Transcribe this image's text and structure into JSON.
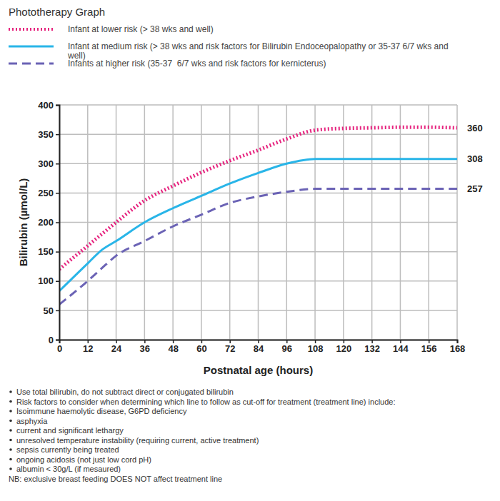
{
  "chart_data": {
    "type": "line",
    "title": "Phototherapy Graph",
    "x_label": "Postnatal age (hours)",
    "y_label": "Bilirubin (µmol/L)",
    "x": [
      0,
      12,
      18,
      24,
      36,
      48,
      60,
      72,
      84,
      96,
      108,
      120,
      132,
      144,
      156,
      168
    ],
    "series": [
      {
        "name": "Infant at lower risk (> 38 wks and well)",
        "color": "#e6237e",
        "line_style": "dotted",
        "values": [
          120,
          160,
          180,
          200,
          237,
          262,
          285,
          305,
          323,
          342,
          357,
          360,
          361,
          362,
          362,
          361
        ]
      },
      {
        "name": "Infant at medium risk (> 38 wks and risk factors for Bilirubin Endoceopalopathy or 35-37 6/7 wks and well)",
        "color": "#29b5e8",
        "line_style": "solid",
        "values": [
          83,
          130,
          153,
          168,
          200,
          224,
          245,
          266,
          284,
          300,
          308,
          308,
          308,
          308,
          308,
          308
        ]
      },
      {
        "name": "Infants at higher risk (35-37  6/7 wks and risk factors for kernicterus)",
        "color": "#6b63b5",
        "line_style": "dashed",
        "values": [
          60,
          100,
          122,
          143,
          168,
          193,
          213,
          233,
          244,
          252,
          257,
          257,
          257,
          257,
          257,
          257
        ]
      }
    ],
    "xlim": [
      0,
      168
    ],
    "xticks": [
      0,
      12,
      24,
      36,
      48,
      60,
      72,
      84,
      96,
      108,
      120,
      132,
      144,
      156,
      168
    ],
    "ylim": [
      0,
      400
    ],
    "yticks": [
      0,
      50,
      100,
      150,
      200,
      250,
      300,
      350,
      400
    ],
    "grid": true,
    "legend": "top-left",
    "annotations": [
      {
        "text": "360",
        "y": 360
      },
      {
        "text": "308",
        "y": 308
      },
      {
        "text": "257",
        "y": 257
      }
    ],
    "notes": [
      "Use total bilirubin, do not subtract direct or conjugated bilirubin",
      "Risk factors to consider when determining which line to follow as cut-off for treatment (treatment line) include:",
      "Isoimmune haemolytic disease, G6PD deficiency",
      "asphyxia",
      "current and significant lethargy",
      "unresolved temperature instability (requiring current, active treatment)",
      "sepsis currently being treated",
      "ongoing acidosis (not just low cord pH)",
      "albumin < 30g/L (if mesaured)"
    ],
    "footnote": "NB: exclusive breast feeding DOES NOT affect treatment line"
  }
}
